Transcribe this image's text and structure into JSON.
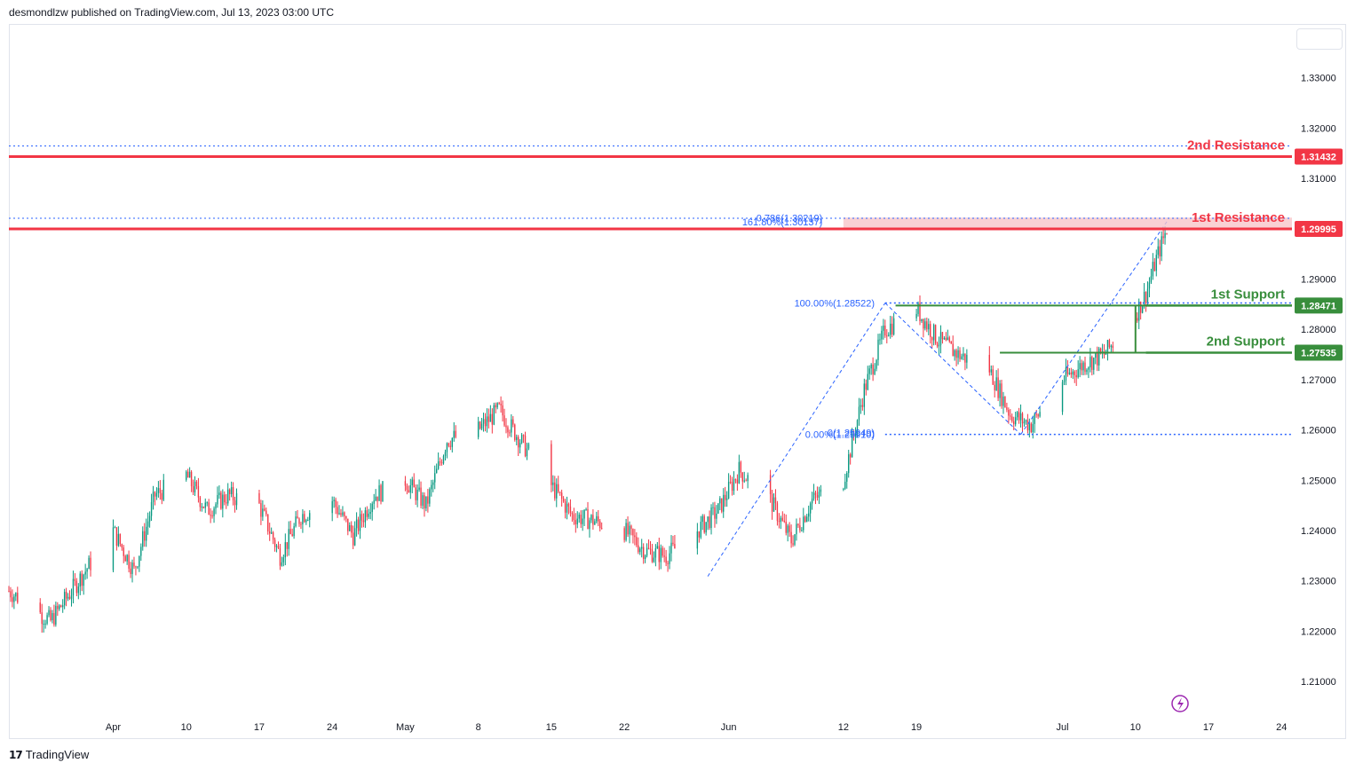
{
  "header": {
    "text": "desmondlzw published on TradingView.com, Jul 13, 2023 03:00 UTC"
  },
  "footer": {
    "brand": "TradingView"
  },
  "colors": {
    "up": "#089981",
    "down": "#f23645",
    "resistance": "#f23645",
    "support": "#388e3c",
    "fib": "#2962ff"
  },
  "chart_data": {
    "type": "candlestick",
    "xlabel": "",
    "ylabel": "",
    "x_ticks": [
      "Apr",
      "10",
      "17",
      "24",
      "May",
      "8",
      "15",
      "22",
      "Jun",
      "12",
      "19",
      "Jul",
      "10",
      "17",
      "24"
    ],
    "y_ticks": [
      1.33,
      1.32,
      1.31,
      1.3,
      1.29,
      1.28,
      1.27,
      1.26,
      1.25,
      1.24,
      1.23,
      1.22,
      1.21
    ],
    "y_tick_labels": [
      "1.33000",
      "1.32000",
      "1.31000",
      "1.30000",
      "1.29000",
      "1.28000",
      "1.27000",
      "1.26000",
      "1.25000",
      "1.24000",
      "1.23000",
      "1.22000",
      "1.21000"
    ],
    "ylim": [
      1.2035,
      1.3405
    ],
    "path_dates": [
      "2023-03-24",
      "2023-03-28",
      "2023-03-31",
      "2023-04-03",
      "2023-04-05",
      "2023-04-07",
      "2023-04-10",
      "2023-04-12",
      "2023-04-14",
      "2023-04-17",
      "2023-04-19",
      "2023-04-21",
      "2023-04-24",
      "2023-04-26",
      "2023-04-28",
      "2023-05-01",
      "2023-05-03",
      "2023-05-05",
      "2023-05-08",
      "2023-05-10",
      "2023-05-12",
      "2023-05-15",
      "2023-05-17",
      "2023-05-19",
      "2023-05-22",
      "2023-05-24",
      "2023-05-26",
      "2023-05-29",
      "2023-05-31",
      "2023-06-02",
      "2023-06-05",
      "2023-06-07",
      "2023-06-09",
      "2023-06-12",
      "2023-06-14",
      "2023-06-16",
      "2023-06-19",
      "2023-06-21",
      "2023-06-23",
      "2023-06-26",
      "2023-06-28",
      "2023-06-30",
      "2023-07-03",
      "2023-07-05",
      "2023-07-07",
      "2023-07-10",
      "2023-07-11",
      "2023-07-12",
      "2023-07-13"
    ],
    "path_closes": [
      1.228,
      1.222,
      1.231,
      1.24,
      1.232,
      1.247,
      1.251,
      1.244,
      1.247,
      1.245,
      1.235,
      1.243,
      1.246,
      1.239,
      1.247,
      1.25,
      1.245,
      1.258,
      1.26,
      1.264,
      1.258,
      1.249,
      1.243,
      1.242,
      1.24,
      1.236,
      1.235,
      1.24,
      1.244,
      1.252,
      1.246,
      1.238,
      1.246,
      1.25,
      1.268,
      1.28,
      1.284,
      1.278,
      1.275,
      1.272,
      1.263,
      1.261,
      1.27,
      1.273,
      1.275,
      1.283,
      1.287,
      1.294,
      1.3
    ],
    "levels": [
      {
        "label": "2nd Resistance",
        "value": 1.31432,
        "value_label": "1.31432",
        "kind": "resistance"
      },
      {
        "label": "1st Resistance",
        "value": 1.29995,
        "value_label": "1.29995",
        "kind": "resistance"
      },
      {
        "label": "1st Support",
        "value": 1.28471,
        "value_label": "1.28471",
        "kind": "support"
      },
      {
        "label": "2nd Support",
        "value": 1.27535,
        "value_label": "1.27535",
        "kind": "support"
      }
    ],
    "fib_labels": [
      {
        "text": "0.786(1.30219)",
        "value": 1.30219
      },
      {
        "text": "161.80%(1.30137)",
        "value": 1.30137
      },
      {
        "text": "100.00%(1.28522)",
        "value": 1.28522
      },
      {
        "text": "0(1.25949)",
        "value": 1.25949
      },
      {
        "text": "0.00%(1.25910)",
        "value": 1.2591
      }
    ]
  }
}
